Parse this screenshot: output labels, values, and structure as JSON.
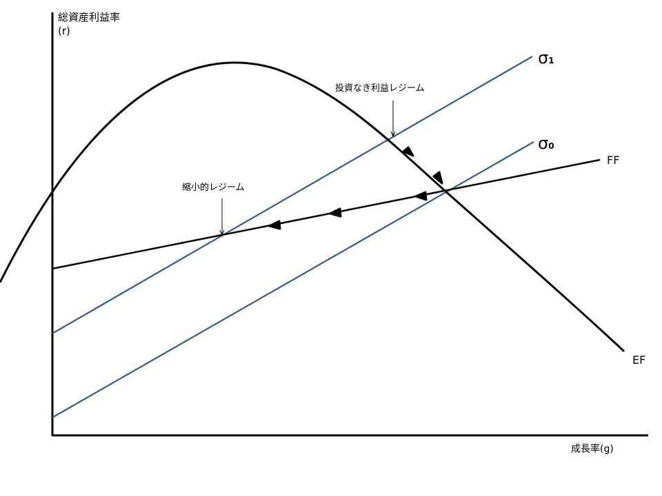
{
  "axes": {
    "y_label_line1": "総資産利益率",
    "y_label_line2": "(r)",
    "x_label": "成長率(g)"
  },
  "curves": {
    "ef_label": "EF",
    "ff_label": "FF",
    "sigma1_label": "σ",
    "sigma1_sub": "1",
    "sigma0_label": "σ",
    "sigma0_sub": "0"
  },
  "annotations": {
    "regime_no_investment": "投資なき利益レジーム",
    "regime_contractionary": "縮小的レジーム"
  },
  "colors": {
    "axis": "#000000",
    "curve": "#000000",
    "sigma_line": "#2a5d9a"
  }
}
